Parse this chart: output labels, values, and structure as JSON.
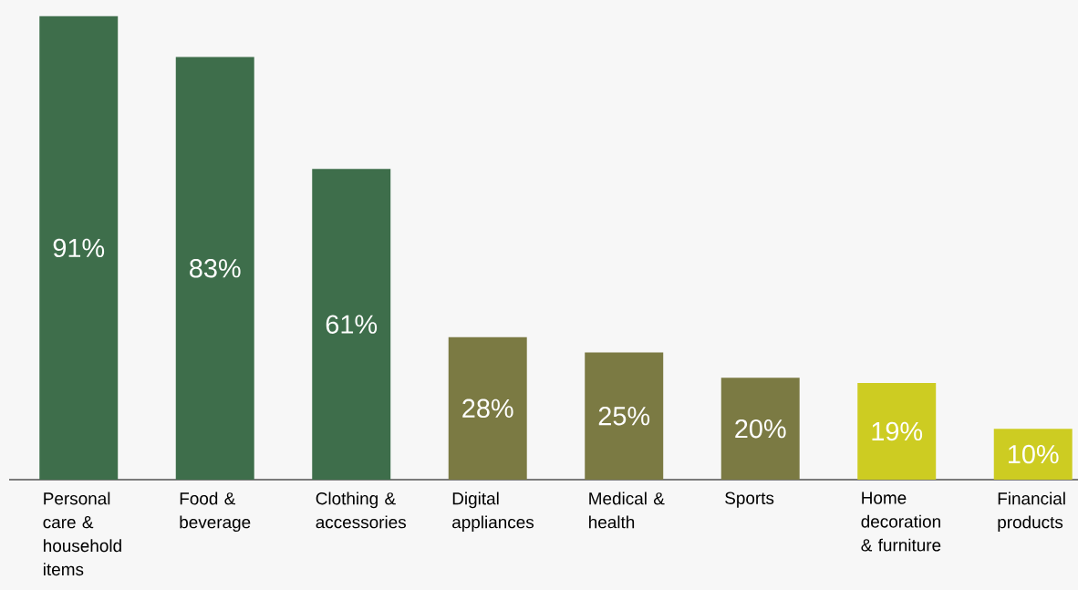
{
  "chart_data": {
    "type": "bar",
    "categories": [
      "Personal care & household items",
      "Food & beverage",
      "Clothing & accessories",
      "Digital appliances",
      "Medical & health",
      "Sports",
      "Home decoration & furniture",
      "Financial products"
    ],
    "values": [
      91,
      83,
      61,
      28,
      25,
      20,
      19,
      10
    ],
    "value_labels": [
      "91%",
      "83%",
      "61%",
      "28%",
      "25%",
      "20%",
      "19%",
      "10%"
    ],
    "colors": [
      "#3e6e4b",
      "#3e6e4b",
      "#3e6e4b",
      "#7b7a43",
      "#7b7a43",
      "#7b7a43",
      "#cdcc22",
      "#cdcc22"
    ]
  }
}
